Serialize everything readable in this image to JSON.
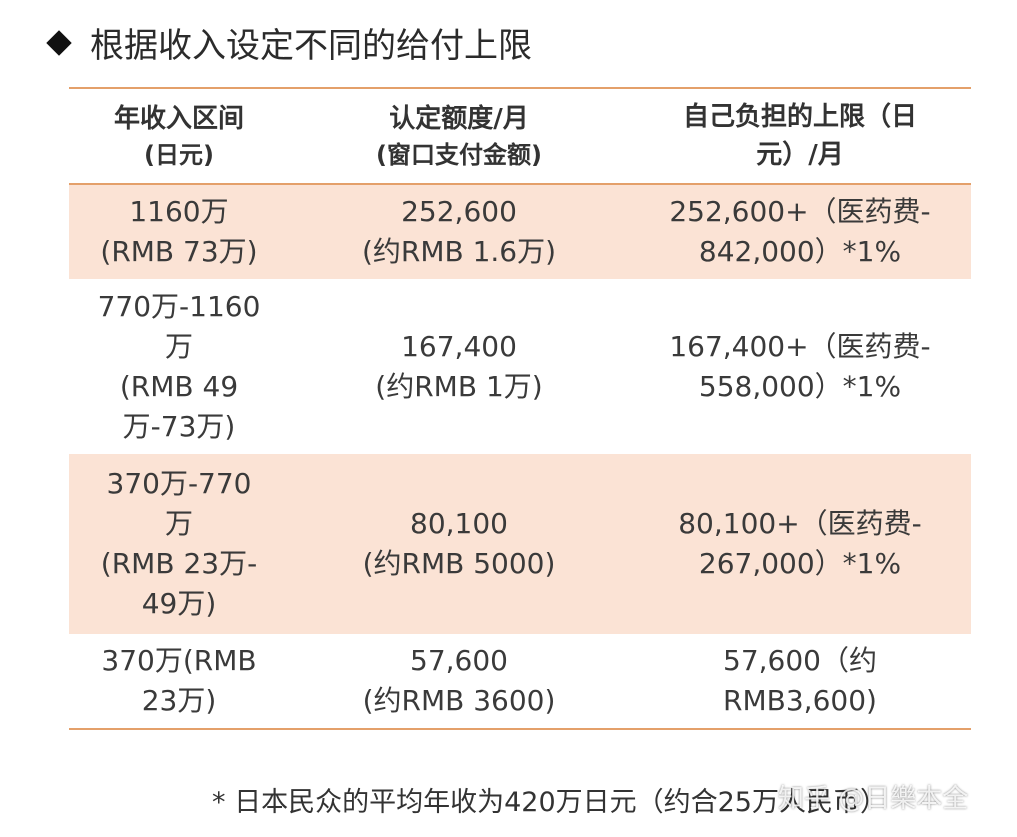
{
  "heading": "根据收入设定不同的给付上限",
  "table": {
    "headers": [
      {
        "line1": "年收入区间",
        "line2": "(日元)"
      },
      {
        "line1": "认定额度/月",
        "line2": "(窗口支付金额)"
      },
      {
        "line1": "自己负担的上限（日",
        "line2": "元）/月"
      }
    ],
    "rows": [
      {
        "income": [
          "1160万",
          "(RMB 73万)"
        ],
        "limit": [
          "252,600",
          "(约RMB 1.6万)"
        ],
        "burden": [
          "252,600+（医药费-",
          "842,000）*1%"
        ]
      },
      {
        "income": [
          "770万-1160",
          "万",
          "(RMB 49",
          "万-73万)"
        ],
        "limit": [
          "167,400",
          "(约RMB 1万)"
        ],
        "burden": [
          "167,400+（医药费-",
          "558,000）*1%"
        ]
      },
      {
        "income": [
          "370万-770",
          "万",
          "(RMB 23万-",
          "49万)"
        ],
        "limit": [
          "80,100",
          "(约RMB 5000)"
        ],
        "burden": [
          "80,100+（医药费-",
          "267,000）*1%"
        ]
      },
      {
        "income": [
          "370万(RMB",
          "23万)"
        ],
        "limit": [
          "57,600",
          "(约RMB 3600)"
        ],
        "burden": [
          "57,600（约",
          "RMB3,600)"
        ]
      }
    ]
  },
  "footnote": "* 日本民众的平均年收为420万日元（约合25万人民币）",
  "watermark": "知乎 @日樂本全"
}
